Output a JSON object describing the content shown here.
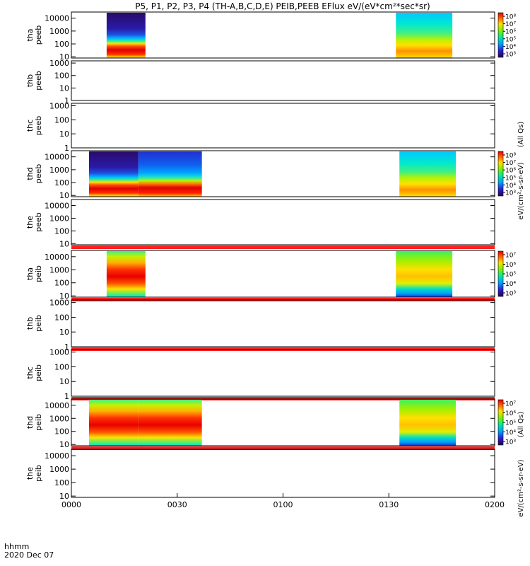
{
  "figure": {
    "title": "P5, P1, P2, P3, P4 (TH-A,B,C,D,E) PEIB,PEEB EFlux eV/(eV*cm²*sec*sr)",
    "time_label_line1": "hhmm",
    "time_label_line2": "2020 Dec 07",
    "x_ticks": [
      "0000",
      "0030",
      "0100",
      "0130",
      "0200"
    ]
  },
  "colorbar_labels": {
    "peeb_right": "eV/(cm²-s-sr-eV)",
    "peeb_all_qs": "(All Qs)",
    "peib_right": "eV/(cm²-s-sr-eV)",
    "peib_all_qs": "(All Qs)"
  },
  "colors": {
    "fill_bar": "#ff2020",
    "frame": "#000000"
  },
  "chart_data": {
    "type": "heatmap",
    "x_range_minutes": [
      0,
      120
    ],
    "panels": [
      {
        "id": "tha_peeb",
        "ylabel1": "tha",
        "ylabel2": "peeb",
        "yticks": [
          "10000",
          "1000",
          "100",
          "10"
        ],
        "ylim": [
          8,
          30000
        ],
        "blocks": [
          {
            "t0": 10,
            "t1": 21,
            "profile": "electron_dense"
          },
          {
            "t0": 92,
            "t1": 108,
            "profile": "electron_sheath"
          }
        ],
        "colorbar": {
          "ticks": [
            "10⁸",
            "10⁷",
            "10⁶",
            "10⁵",
            "10⁴",
            "10³"
          ]
        }
      },
      {
        "id": "thb_peeb",
        "ylabel1": "thb",
        "ylabel2": "peeb",
        "yticks": [
          "1000",
          "100",
          "10",
          "1"
        ],
        "ylim": [
          1,
          1500
        ],
        "blocks": []
      },
      {
        "id": "thc_peeb",
        "ylabel1": "thc",
        "ylabel2": "peeb",
        "yticks": [
          "1000",
          "100",
          "10",
          "1"
        ],
        "ylim": [
          1,
          1500
        ],
        "blocks": []
      },
      {
        "id": "thd_peeb",
        "ylabel1": "thd",
        "ylabel2": "peeb",
        "yticks": [
          "10000",
          "1000",
          "100",
          "10"
        ],
        "ylim": [
          8,
          30000
        ],
        "blocks": [
          {
            "t0": 5,
            "t1": 19,
            "profile": "electron_dense"
          },
          {
            "t0": 19,
            "t1": 37,
            "profile": "electron_mid"
          },
          {
            "t0": 93,
            "t1": 109,
            "profile": "electron_sheath"
          }
        ],
        "colorbar": {
          "ticks": [
            "10⁸",
            "10⁷",
            "10⁶",
            "10⁵",
            "10⁴",
            "10³"
          ]
        }
      },
      {
        "id": "the_peeb",
        "ylabel1": "the",
        "ylabel2": "peeb",
        "yticks": [
          "10000",
          "1000",
          "100",
          "10"
        ],
        "ylim": [
          8,
          30000
        ],
        "blocks": [],
        "fill_bar": true
      },
      {
        "id": "tha_peib",
        "ylabel1": "tha",
        "ylabel2": "peib",
        "yticks": [
          "10000",
          "1000",
          "100",
          "10"
        ],
        "ylim": [
          8,
          30000
        ],
        "blocks": [
          {
            "t0": 10,
            "t1": 21,
            "profile": "ion_dense"
          },
          {
            "t0": 92,
            "t1": 108,
            "profile": "ion_sheath"
          }
        ],
        "fill_bar": true,
        "colorbar": {
          "ticks": [
            "10⁷",
            "10⁶",
            "10⁵",
            "10⁴",
            "10³"
          ]
        }
      },
      {
        "id": "thb_peib",
        "ylabel1": "thb",
        "ylabel2": "peib",
        "yticks": [
          "1000",
          "100",
          "10",
          "1"
        ],
        "ylim": [
          1,
          1500
        ],
        "blocks": [],
        "fill_bar": true
      },
      {
        "id": "thc_peib",
        "ylabel1": "thc",
        "ylabel2": "peib",
        "yticks": [
          "1000",
          "100",
          "10",
          "1"
        ],
        "ylim": [
          1,
          1500
        ],
        "blocks": [],
        "fill_bar": true
      },
      {
        "id": "thd_peib",
        "ylabel1": "thd",
        "ylabel2": "peib",
        "yticks": [
          "10000",
          "1000",
          "100",
          "10"
        ],
        "ylim": [
          8,
          30000
        ],
        "blocks": [
          {
            "t0": 5,
            "t1": 19,
            "profile": "ion_dense"
          },
          {
            "t0": 19,
            "t1": 37,
            "profile": "ion_dense"
          },
          {
            "t0": 93,
            "t1": 109,
            "profile": "ion_sheath"
          }
        ],
        "fill_bar": true,
        "colorbar": {
          "ticks": [
            "10⁷",
            "10⁶",
            "10⁵",
            "10⁴",
            "10³"
          ]
        }
      },
      {
        "id": "the_peib",
        "ylabel1": "the",
        "ylabel2": "peib",
        "yticks": [
          "10000",
          "1000",
          "100",
          "10"
        ],
        "ylim": [
          8,
          30000
        ],
        "blocks": []
      }
    ]
  }
}
